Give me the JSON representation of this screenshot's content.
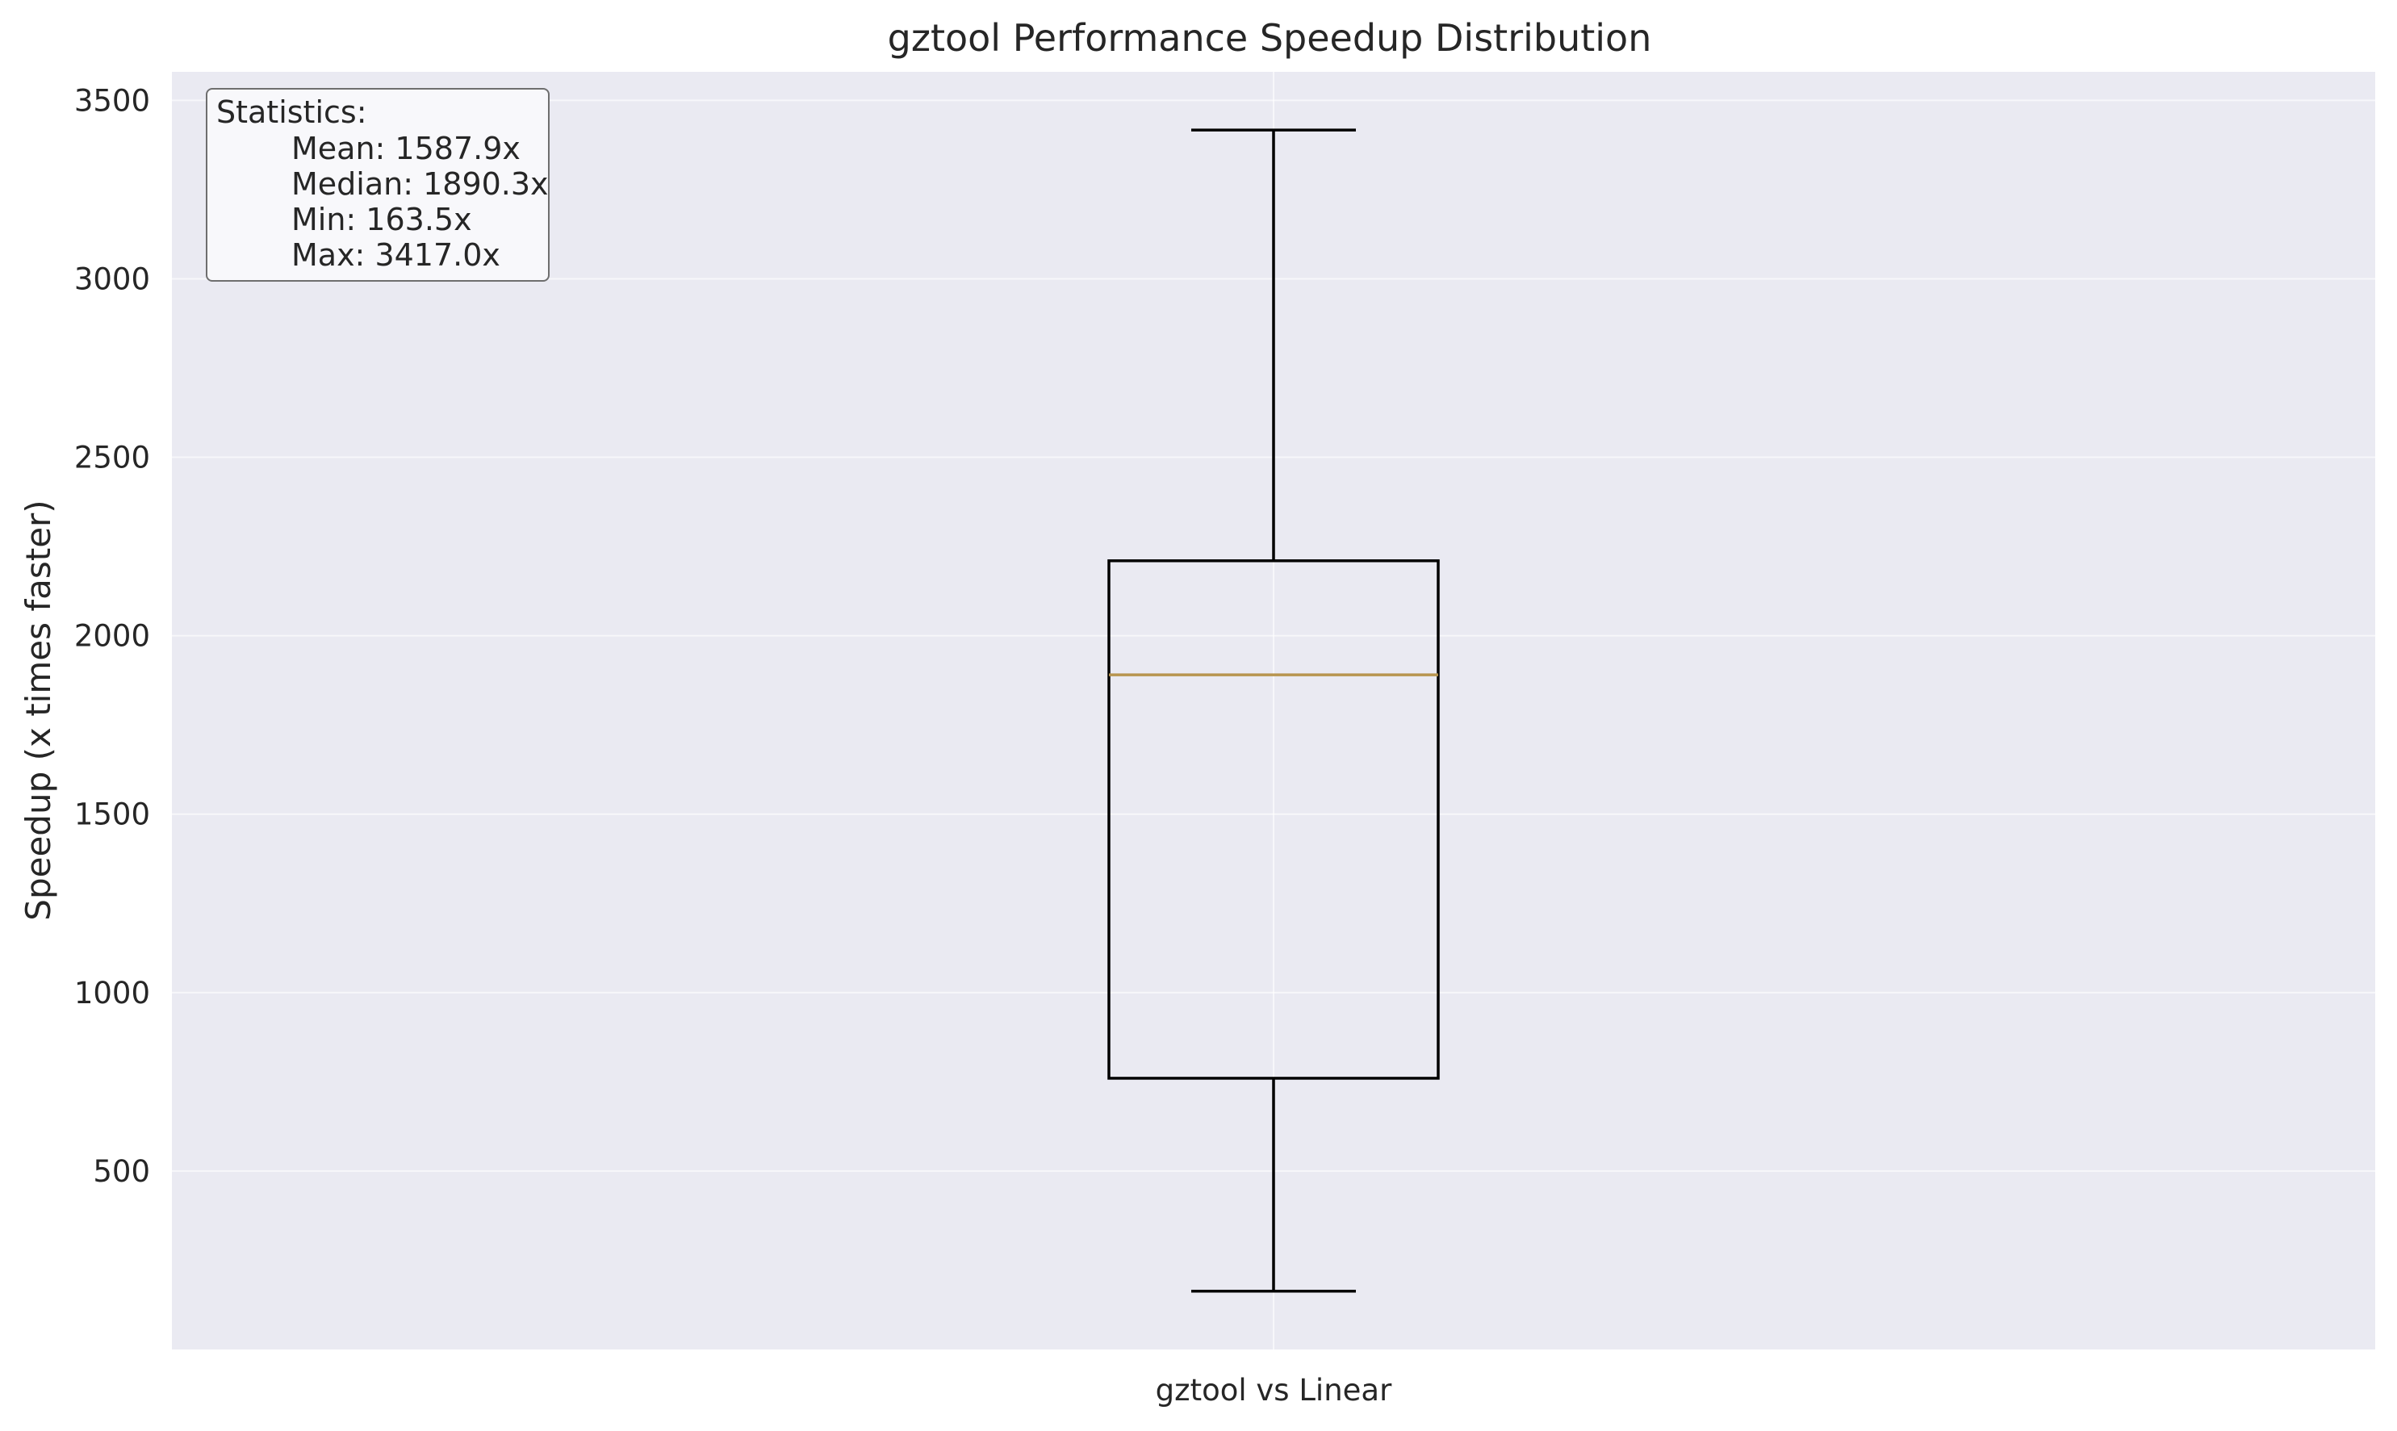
{
  "chart_data": {
    "type": "box",
    "title": "gztool Performance Speedup Distribution",
    "xlabel": "",
    "ylabel": "Speedup (x times faster)",
    "categories": [
      "gztool vs Linear"
    ],
    "boxes": [
      {
        "category": "gztool vs Linear",
        "whisker_low": 163.5,
        "q1": 760,
        "median": 1890.3,
        "q3": 2210,
        "whisker_high": 3417.0
      }
    ],
    "ylim": [
      0,
      3580
    ],
    "yticks": [
      500,
      1000,
      1500,
      2000,
      2500,
      3000,
      3500
    ],
    "grid": true,
    "background_color": "#eaeaf2",
    "box_color": "#000000",
    "median_color": "#b8954f",
    "stats_box": {
      "placement": "top-left",
      "heading": "Statistics:",
      "lines": [
        "Mean: 1587.9x",
        "Median: 1890.3x",
        "Min: 163.5x",
        "Max: 3417.0x"
      ]
    }
  }
}
